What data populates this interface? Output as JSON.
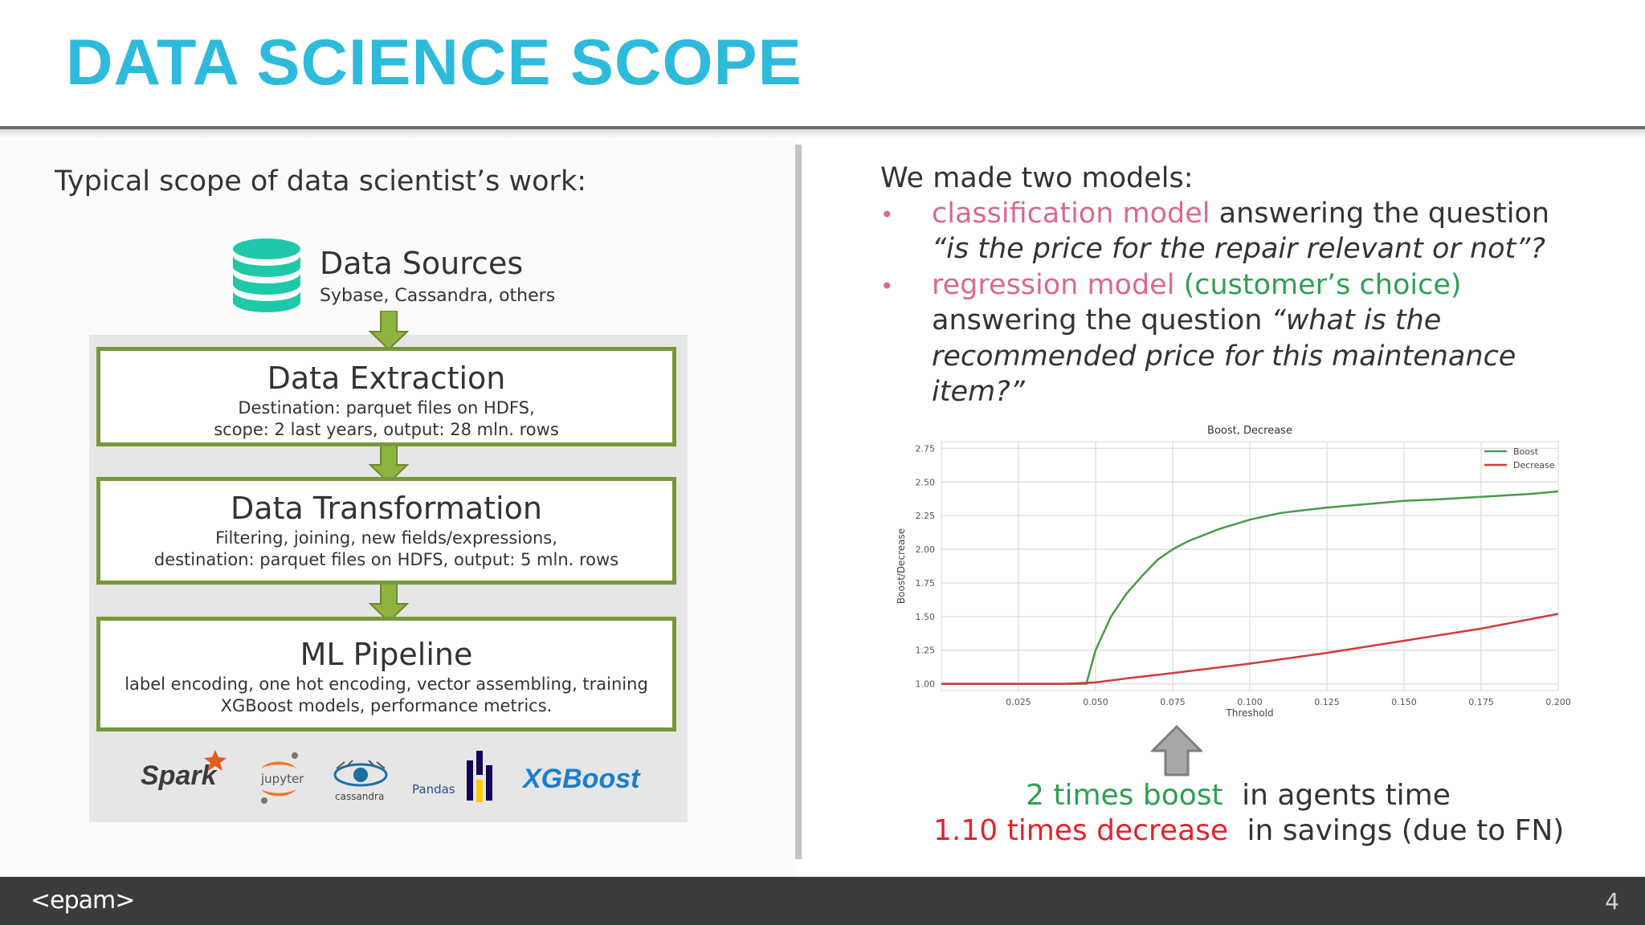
{
  "slide": {
    "title": "DATA SCIENCE SCOPE",
    "page_number": "4",
    "brand": "<epam>"
  },
  "left": {
    "heading": "Typical scope of data scientist’s work:",
    "sources": {
      "title": "Data Sources",
      "subtitle": "Sybase, Cassandra, others",
      "icon": "database-icon"
    },
    "steps": [
      {
        "title": "Data Extraction",
        "lines": [
          "Destination: parquet files on HDFS,",
          "scope: 2 last years, output: 28 mln. rows"
        ]
      },
      {
        "title": "Data Transformation",
        "lines": [
          "Filtering, joining, new fields/expressions,",
          "destination: parquet files on HDFS, output: 5 mln. rows"
        ]
      },
      {
        "title": "ML Pipeline",
        "lines": [
          "label encoding, one hot encoding, vector assembling, training",
          "XGBoost models, performance metrics."
        ]
      }
    ],
    "logos": [
      "Spark",
      "jupyter",
      "cassandra",
      "Pandas",
      "XGBoost"
    ],
    "colors": {
      "flow_green": "#77993a",
      "panel_gray": "#e6e6e6",
      "db_teal": "#1fc8a9"
    }
  },
  "right": {
    "intro": "We made two models:",
    "bullet_char": "•",
    "bullet1": {
      "model": "classification model",
      "rest": " answering the question",
      "question": "“is the price for the repair relevant or not”?"
    },
    "bullet2": {
      "model": "regression model",
      "choice": "(customer’s choice)",
      "line2_plain": "answering the question ",
      "line2_italic": "“what is the",
      "line3": "recommended price for this maintenance",
      "line4": "item?”"
    },
    "results": [
      {
        "highlight": "2 times boost",
        "rest": "in agents time"
      },
      {
        "highlight": "1.10 times decrease",
        "rest": "in savings (due to FN)"
      }
    ],
    "colors": {
      "pink": "#d96a8a",
      "green": "#2e9f52",
      "red": "#e5222a"
    }
  },
  "chart_data": {
    "type": "line",
    "title": "Boost, Decrease",
    "xlabel": "Threshold",
    "ylabel": "Boost/Decrease",
    "xlim": [
      0.0,
      0.2
    ],
    "ylim": [
      0.95,
      2.8
    ],
    "xticks": [
      "0.025",
      "0.050",
      "0.075",
      "0.100",
      "0.125",
      "0.150",
      "0.175",
      "0.200"
    ],
    "yticks": [
      "1.00",
      "1.25",
      "1.50",
      "1.75",
      "2.00",
      "2.25",
      "2.50",
      "2.75"
    ],
    "grid": true,
    "legend_position": "top-right",
    "series": [
      {
        "name": "Boost",
        "color": "#4a9a4a",
        "x": [
          0.0,
          0.04,
          0.047,
          0.05,
          0.055,
          0.06,
          0.065,
          0.07,
          0.075,
          0.08,
          0.09,
          0.1,
          0.11,
          0.125,
          0.14,
          0.15,
          0.16,
          0.175,
          0.19,
          0.2
        ],
        "y": [
          1.0,
          1.0,
          1.0,
          1.25,
          1.5,
          1.67,
          1.8,
          1.92,
          2.0,
          2.06,
          2.15,
          2.22,
          2.27,
          2.31,
          2.34,
          2.36,
          2.37,
          2.39,
          2.41,
          2.43
        ]
      },
      {
        "name": "Decrease",
        "color": "#d23a3a",
        "x": [
          0.0,
          0.04,
          0.05,
          0.06,
          0.075,
          0.1,
          0.125,
          0.15,
          0.175,
          0.2
        ],
        "y": [
          1.0,
          1.0,
          1.01,
          1.04,
          1.08,
          1.15,
          1.23,
          1.32,
          1.41,
          1.52
        ]
      }
    ]
  }
}
